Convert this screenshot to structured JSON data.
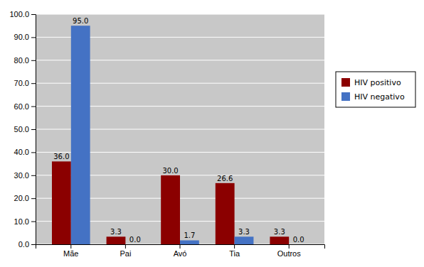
{
  "chart_data": {
    "type": "bar",
    "categories": [
      "Mãe",
      "Pai",
      "Avó",
      "Tia",
      "Outros"
    ],
    "series": [
      {
        "name": "HIV positivo",
        "color": "#8B0000",
        "values": [
          36.0,
          3.3,
          30.0,
          26.6,
          3.3
        ],
        "value_labels": [
          "36.0",
          "3.3",
          "30.0",
          "26.6",
          "3.3"
        ]
      },
      {
        "name": "HIV negativo",
        "color": "#4472C4",
        "values": [
          95.0,
          0.0,
          1.7,
          3.3,
          0.0
        ],
        "value_labels": [
          "95.0",
          "0.0",
          "1.7",
          "3.3",
          "0.0"
        ]
      }
    ],
    "ylim": [
      0,
      100
    ],
    "yticks": [
      {
        "value": 0.0,
        "label": "0.0"
      },
      {
        "value": 10.0,
        "label": "10.0"
      },
      {
        "value": 20.0,
        "label": "20.0"
      },
      {
        "value": 30.0,
        "label": "30.0"
      },
      {
        "value": 40.0,
        "label": "40.0"
      },
      {
        "value": 50.0,
        "label": "50.0"
      },
      {
        "value": 60.0,
        "label": "60.0"
      },
      {
        "value": 70.0,
        "label": "70.0"
      },
      {
        "value": 80.0,
        "label": "80.0"
      },
      {
        "value": 90.0,
        "label": "90.0"
      },
      {
        "value": 100.0,
        "label": "100.0"
      }
    ],
    "grid": true,
    "legend": "right",
    "data_labels": true
  }
}
